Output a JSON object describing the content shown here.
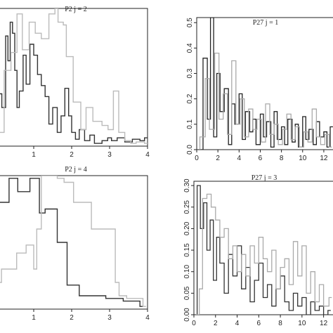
{
  "chart_data": [
    {
      "type": "line",
      "title": "P2 j = 2",
      "xlim": [
        0,
        4
      ],
      "ylim": [
        0,
        1
      ],
      "xticks": [
        "1",
        "2",
        "3",
        "4"
      ],
      "yticks": [],
      "series": [
        {
          "color": "#333333",
          "width": 1.4,
          "x": [
            0.0,
            0.06,
            0.16,
            0.26,
            0.32,
            0.38,
            0.44,
            0.5,
            0.56,
            0.62,
            0.72,
            0.8,
            0.9,
            1.0,
            1.1,
            1.2,
            1.3,
            1.4,
            1.5,
            1.62,
            1.72,
            1.82,
            1.92,
            2.0,
            2.1,
            2.2,
            2.34,
            2.48,
            2.6,
            2.8,
            2.95,
            3.05,
            3.2,
            3.4,
            3.6,
            3.8,
            3.92
          ],
          "y": [
            0.25,
            0.38,
            0.28,
            0.8,
            0.62,
            0.9,
            0.82,
            0.55,
            0.28,
            0.4,
            0.66,
            0.45,
            0.74,
            0.66,
            0.52,
            0.44,
            0.36,
            0.16,
            0.28,
            0.1,
            0.22,
            0.42,
            0.22,
            0.1,
            0.05,
            0.12,
            0.04,
            0.08,
            0.02,
            0.04,
            0.06,
            0.04,
            0.06,
            0.03,
            0.05,
            0.04,
            0.06
          ]
        },
        {
          "color": "#bbbbbb",
          "width": 1.4,
          "x": [
            0.0,
            0.22,
            0.4,
            0.56,
            0.7,
            0.88,
            1.04,
            1.2,
            1.4,
            1.56,
            1.64,
            1.78,
            1.86,
            2.04,
            2.24,
            2.38,
            2.56,
            2.8,
            2.96,
            3.1,
            3.24,
            3.4,
            3.56,
            3.7,
            3.92
          ],
          "y": [
            0.1,
            0.55,
            0.68,
            0.96,
            0.7,
            0.9,
            0.82,
            0.78,
            0.96,
            1.0,
            0.9,
            0.88,
            0.65,
            0.32,
            0.12,
            0.28,
            0.18,
            0.15,
            0.12,
            0.4,
            0.1,
            0.04,
            0.02,
            0.03,
            0.02
          ]
        }
      ]
    },
    {
      "type": "line",
      "title": "P27 j = 1",
      "xlim": [
        0,
        13
      ],
      "ylim": [
        0,
        0.52
      ],
      "xticks": [
        "0",
        "2",
        "4",
        "6",
        "8",
        "10",
        "12"
      ],
      "yticks": [
        "0.0",
        "0.1",
        "0.2",
        "0.3",
        "0.4",
        "0.5"
      ],
      "series": [
        {
          "color": "#222222",
          "width": 1.3,
          "x": [
            0.2,
            0.6,
            1.0,
            1.3,
            1.6,
            1.9,
            2.2,
            2.6,
            3.0,
            3.3,
            3.6,
            4.0,
            4.3,
            4.6,
            5.0,
            5.3,
            5.6,
            6.0,
            6.3,
            6.6,
            7.0,
            7.3,
            7.6,
            8.0,
            8.3,
            8.6,
            9.0,
            9.3,
            9.6,
            10.0,
            10.3,
            10.6,
            11.0,
            11.3,
            11.6,
            12.0,
            12.3,
            12.6
          ],
          "y": [
            0.0,
            0.36,
            0.12,
            0.52,
            0.05,
            0.3,
            0.15,
            0.24,
            0.02,
            0.18,
            0.1,
            0.22,
            0.04,
            0.15,
            0.07,
            0.12,
            0.02,
            0.14,
            0.05,
            0.11,
            0.01,
            0.15,
            0.04,
            0.09,
            0.02,
            0.12,
            0.03,
            0.1,
            0.01,
            0.13,
            0.04,
            0.08,
            0.02,
            0.11,
            0.05,
            0.07,
            0.01,
            0.09
          ]
        },
        {
          "color": "#aaaaaa",
          "width": 1.3,
          "x": [
            0.3,
            0.8,
            1.2,
            1.7,
            2.1,
            2.5,
            2.9,
            3.3,
            3.7,
            4.1,
            4.5,
            4.9,
            5.3,
            5.7,
            6.1,
            6.5,
            6.9,
            7.3,
            7.7,
            8.1,
            8.5,
            8.9,
            9.3,
            9.7,
            10.1,
            10.5,
            10.9,
            11.3,
            11.7,
            12.1,
            12.5
          ],
          "y": [
            0.05,
            0.28,
            0.08,
            0.38,
            0.12,
            0.22,
            0.06,
            0.35,
            0.1,
            0.2,
            0.05,
            0.16,
            0.08,
            0.12,
            0.03,
            0.18,
            0.06,
            0.1,
            0.02,
            0.08,
            0.14,
            0.04,
            0.09,
            0.01,
            0.07,
            0.03,
            0.16,
            0.05,
            0.02,
            0.06,
            0.01
          ]
        }
      ]
    },
    {
      "type": "line",
      "title": "P2 j = 4",
      "xlim": [
        0,
        4
      ],
      "ylim": [
        0,
        1
      ],
      "xticks": [
        "1",
        "2",
        "3",
        "4"
      ],
      "yticks": [],
      "series": [
        {
          "color": "#333333",
          "width": 1.4,
          "x": [
            0.0,
            0.35,
            0.58,
            0.9,
            1.15,
            1.3,
            1.62,
            1.88,
            2.2,
            2.9,
            3.36,
            3.8
          ],
          "y": [
            0.8,
            0.98,
            0.88,
            0.98,
            0.72,
            0.75,
            0.5,
            0.18,
            0.1,
            0.08,
            0.06,
            0.02
          ]
        },
        {
          "color": "#bbbbbb",
          "width": 1.4,
          "x": [
            0.0,
            0.15,
            0.55,
            0.8,
            1.0,
            1.08,
            1.2,
            1.4,
            1.62,
            1.8,
            2.05,
            2.52,
            3.15,
            3.25,
            3.45,
            3.88
          ],
          "y": [
            0.2,
            0.3,
            0.42,
            0.48,
            0.3,
            0.6,
            1.0,
            1.0,
            0.98,
            0.95,
            0.8,
            0.6,
            0.2,
            0.1,
            0.08,
            0.02
          ]
        }
      ]
    },
    {
      "type": "line",
      "title": "P27 j = 3",
      "xlim": [
        0,
        13
      ],
      "ylim": [
        0,
        0.31
      ],
      "xticks": [
        "0",
        "2",
        "4",
        "6",
        "8",
        "10",
        "12"
      ],
      "yticks": [
        "0.00",
        "0.05",
        "0.10",
        "0.15",
        "0.20",
        "0.25",
        "0.30"
      ],
      "series": [
        {
          "color": "#333333",
          "width": 1.3,
          "x": [
            0.3,
            0.6,
            0.9,
            1.2,
            1.5,
            1.8,
            2.1,
            2.4,
            2.8,
            3.2,
            3.6,
            4.0,
            4.4,
            4.8,
            5.2,
            5.6,
            6.0,
            6.4,
            6.8,
            7.2,
            7.6,
            8.0,
            8.4,
            8.8,
            9.2,
            9.6,
            10.0,
            10.4,
            10.8,
            11.2,
            11.6,
            12.0,
            12.4
          ],
          "y": [
            0.3,
            0.2,
            0.26,
            0.15,
            0.22,
            0.08,
            0.18,
            0.12,
            0.05,
            0.14,
            0.09,
            0.16,
            0.06,
            0.11,
            0.03,
            0.08,
            0.12,
            0.04,
            0.07,
            0.02,
            0.06,
            0.09,
            0.03,
            0.01,
            0.05,
            0.02,
            0.04,
            0.0,
            0.03,
            0.01,
            0.02,
            0.0,
            0.01
          ]
        },
        {
          "color": "#aaaaaa",
          "width": 1.3,
          "x": [
            0.2,
            0.5,
            0.8,
            1.2,
            1.6,
            2.0,
            2.4,
            2.8,
            3.2,
            3.6,
            4.0,
            4.4,
            4.8,
            5.2,
            5.6,
            6.0,
            6.4,
            6.8,
            7.2,
            7.6,
            8.0,
            8.4,
            8.8,
            9.2,
            9.6,
            10.0,
            10.4,
            10.8,
            11.2,
            11.6,
            12.0,
            12.5
          ],
          "y": [
            0.0,
            0.06,
            0.27,
            0.28,
            0.25,
            0.22,
            0.18,
            0.2,
            0.13,
            0.16,
            0.1,
            0.14,
            0.09,
            0.16,
            0.12,
            0.18,
            0.13,
            0.1,
            0.15,
            0.06,
            0.11,
            0.13,
            0.07,
            0.17,
            0.09,
            0.16,
            0.05,
            0.1,
            0.03,
            0.07,
            0.02,
            0.04
          ]
        }
      ]
    }
  ]
}
